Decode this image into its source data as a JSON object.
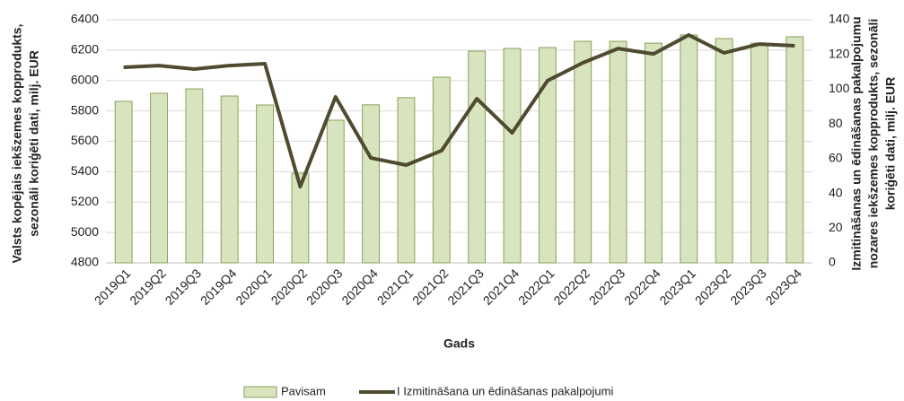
{
  "chart_data": {
    "type": "bar_line",
    "categories": [
      "2019Q1",
      "2019Q2",
      "2019Q3",
      "2019Q4",
      "2020Q1",
      "2020Q2",
      "2020Q3",
      "2020Q4",
      "2021Q1",
      "2021Q2",
      "2021Q3",
      "2021Q4",
      "2022Q1",
      "2022Q2",
      "2022Q3",
      "2022Q4",
      "2023Q1",
      "2023Q2",
      "2023Q3",
      "2023Q4"
    ],
    "series": [
      {
        "name": "Pavisam",
        "type": "bar",
        "color": "#d7e4bd",
        "stroke": "#8aa05a",
        "values": [
          5863,
          5916,
          5945,
          5898,
          5839,
          5390,
          5739,
          5840,
          5887,
          6022,
          6193,
          6211,
          6217,
          6258,
          6258,
          6246,
          6300,
          6276,
          6246,
          6288
        ]
      },
      {
        "name": "I Izmitināšana un ēdināšanas pakalpojumi",
        "type": "line",
        "axis": "y2",
        "color": "#4f4a30",
        "values": [
          112.6,
          113.6,
          111.6,
          113.6,
          114.7,
          43.9,
          95.6,
          60.4,
          56.3,
          64.6,
          94.5,
          74.9,
          104.9,
          115.2,
          123.4,
          120.3,
          131.2,
          120.9,
          126,
          125
        ]
      }
    ],
    "x_label": "Gads",
    "y_label": [
      "Valsts kopējais iekšzemes kopprodukts,",
      "sezonāli koriģēti dati, milj. EUR"
    ],
    "y2_label": [
      "Izmitināšanas un ēdināšanas pakalpojumu",
      "nozares iekšzemes kopprodukts, sezonāli",
      "koriģēti dati, milj. EUR"
    ],
    "ylim": [
      4800,
      6400
    ],
    "yticks": [
      4800,
      5000,
      5200,
      5400,
      5600,
      5800,
      6000,
      6200,
      6400
    ],
    "y2lim": [
      0,
      140
    ],
    "y2ticks": [
      0,
      20,
      40,
      60,
      80,
      100,
      120,
      140
    ],
    "grid": true,
    "legend": "bottom"
  }
}
